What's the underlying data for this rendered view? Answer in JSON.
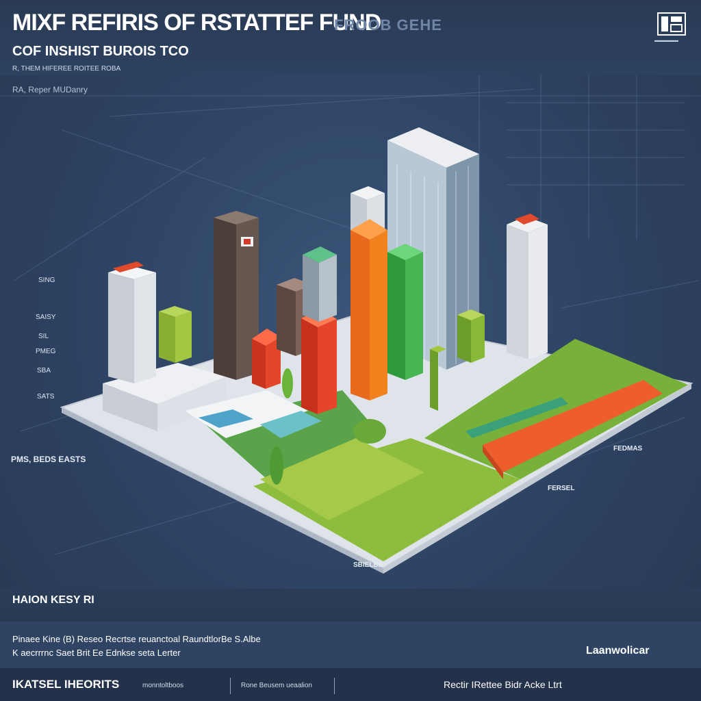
{
  "header": {
    "title": "MIXF REFIRIS OF RSTATTEF FUND",
    "title_ghost": "FROOB GEHE",
    "subtitle": "COF INSHIST BUROIS TCO",
    "caption": "R, THEM HIFEREE ROITEE ROBA",
    "side_note": "RA, Reper MUDanry"
  },
  "axis_labels": [
    "SING",
    "SAISY",
    "SIL",
    "PMEG",
    "SBA",
    "SATS"
  ],
  "floor_labels": [
    "PMS, BEDS EASTS",
    "FEDMAS",
    "FERSEL",
    "SBIELBE"
  ],
  "footer": {
    "heading": "HAION KESY RI",
    "line1": "Pinaee Kine (B) Reseo Recrtse reuanctoal RaundtlorBe S.Albe",
    "line2": "K aecrrrnc Saet Brit Ee Ednkse seta Lerter",
    "brand": "Laanwolicar",
    "bottom_left": "IKATSEL IHEORITS",
    "bottom_mid_left": "monntoltboos",
    "bottom_mid": "Rone Beusem ueaalion",
    "bottom_right": "Rectir IRettee Bidr Acke Ltrt"
  },
  "colors": {
    "background": "#2f4566",
    "orange": "#f0782a",
    "red": "#e2472a",
    "green": "#3fae4a",
    "lime": "#9bc63f",
    "brown": "#5a4a42",
    "white_tower": "#e8ebef"
  },
  "icons": [
    "logo-icon"
  ]
}
